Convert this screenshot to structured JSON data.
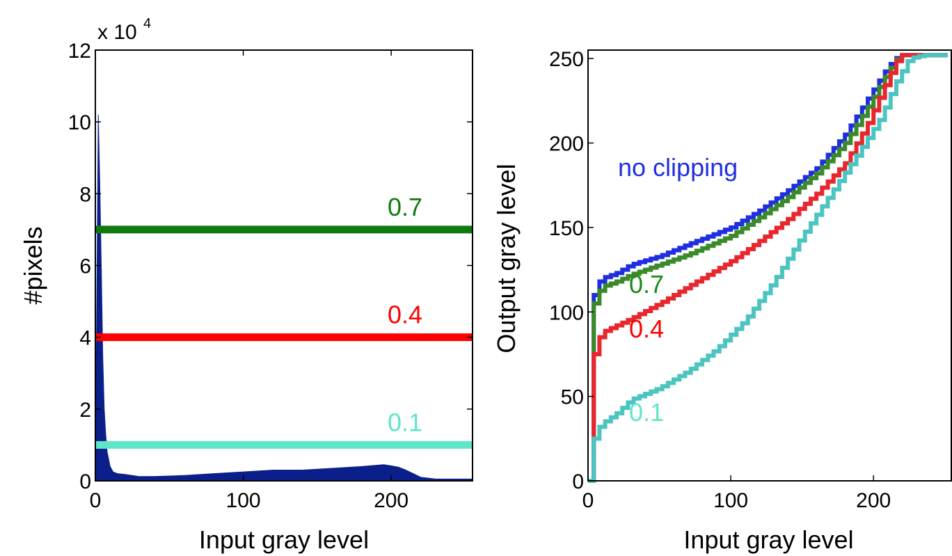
{
  "chart_data": [
    {
      "type": "bar",
      "title": "",
      "xlabel": "Input gray level",
      "ylabel": "#pixels",
      "y_exponent_label": "x 10",
      "y_exponent_power": "4",
      "xlim": [
        0,
        255
      ],
      "ylim": [
        0,
        12
      ],
      "xticks": [
        "0",
        "100",
        "200"
      ],
      "yticks": [
        "0",
        "2",
        "4",
        "6",
        "8",
        "10",
        "12"
      ],
      "histogram_color": "#0b1f8a",
      "histogram": {
        "x": [
          0,
          2,
          3,
          4,
          5,
          6,
          7,
          8,
          10,
          12,
          15,
          20,
          30,
          40,
          60,
          80,
          100,
          120,
          140,
          160,
          180,
          195,
          200,
          205,
          210,
          215,
          220,
          230,
          240,
          255
        ],
        "values": [
          0,
          10.2,
          8.3,
          6.0,
          3.5,
          2.0,
          1.3,
          0.8,
          0.4,
          0.25,
          0.2,
          0.18,
          0.12,
          0.12,
          0.15,
          0.2,
          0.25,
          0.3,
          0.3,
          0.35,
          0.4,
          0.45,
          0.42,
          0.38,
          0.3,
          0.2,
          0.1,
          0.05,
          0.05,
          0.05
        ]
      },
      "clip_lines": [
        {
          "label": "0.7",
          "value": 7.0,
          "color": "#0f7a0f"
        },
        {
          "label": "0.4",
          "value": 4.0,
          "color": "#ff0000"
        },
        {
          "label": "0.1",
          "value": 1.0,
          "color": "#5ee6c8"
        }
      ]
    },
    {
      "type": "line",
      "title": "",
      "xlabel": "Input gray level",
      "ylabel": "Output gray level",
      "xlim": [
        0,
        255
      ],
      "ylim": [
        0,
        255
      ],
      "xticks": [
        "0",
        "100",
        "200"
      ],
      "yticks": [
        "0",
        "50",
        "100",
        "150",
        "200",
        "250"
      ],
      "series": [
        {
          "name": "no clipping",
          "color": "#1f2fe0",
          "x": [
            0,
            2,
            4,
            6,
            10,
            20,
            30,
            50,
            70,
            100,
            120,
            140,
            160,
            180,
            195,
            210,
            218,
            225,
            255
          ],
          "y": [
            0,
            100,
            110,
            116,
            120,
            123,
            128,
            133,
            140,
            150,
            160,
            172,
            185,
            205,
            225,
            245,
            252,
            252,
            252
          ]
        },
        {
          "name": "0.7",
          "color": "#3a8a2a",
          "x": [
            0,
            2,
            4,
            6,
            10,
            20,
            30,
            50,
            70,
            100,
            120,
            140,
            160,
            180,
            195,
            210,
            218,
            225,
            255
          ],
          "y": [
            0,
            90,
            105,
            110,
            115,
            118,
            122,
            128,
            134,
            145,
            156,
            168,
            182,
            200,
            220,
            242,
            252,
            252,
            252
          ]
        },
        {
          "name": "0.4",
          "color": "#e8262e",
          "x": [
            0,
            2,
            4,
            6,
            10,
            20,
            30,
            50,
            70,
            100,
            120,
            140,
            160,
            180,
            195,
            210,
            218,
            225,
            255
          ],
          "y": [
            0,
            45,
            75,
            82,
            88,
            92,
            96,
            105,
            115,
            130,
            142,
            155,
            170,
            188,
            210,
            238,
            252,
            252,
            252
          ]
        },
        {
          "name": "0.1",
          "color": "#4cc4c0",
          "x": [
            0,
            2,
            4,
            6,
            10,
            20,
            30,
            50,
            70,
            90,
            110,
            130,
            150,
            170,
            190,
            205,
            215,
            225,
            235,
            255
          ],
          "y": [
            0,
            15,
            25,
            30,
            34,
            40,
            48,
            55,
            65,
            78,
            95,
            118,
            145,
            170,
            195,
            215,
            235,
            250,
            252,
            252
          ]
        }
      ],
      "annotations": [
        {
          "text": "no clipping",
          "color": "#1f2fe0"
        },
        {
          "text": "0.7",
          "color": "#1a8a1a"
        },
        {
          "text": "0.4",
          "color": "#ff0000"
        },
        {
          "text": "0.1",
          "color": "#5ee6c8"
        }
      ]
    }
  ]
}
